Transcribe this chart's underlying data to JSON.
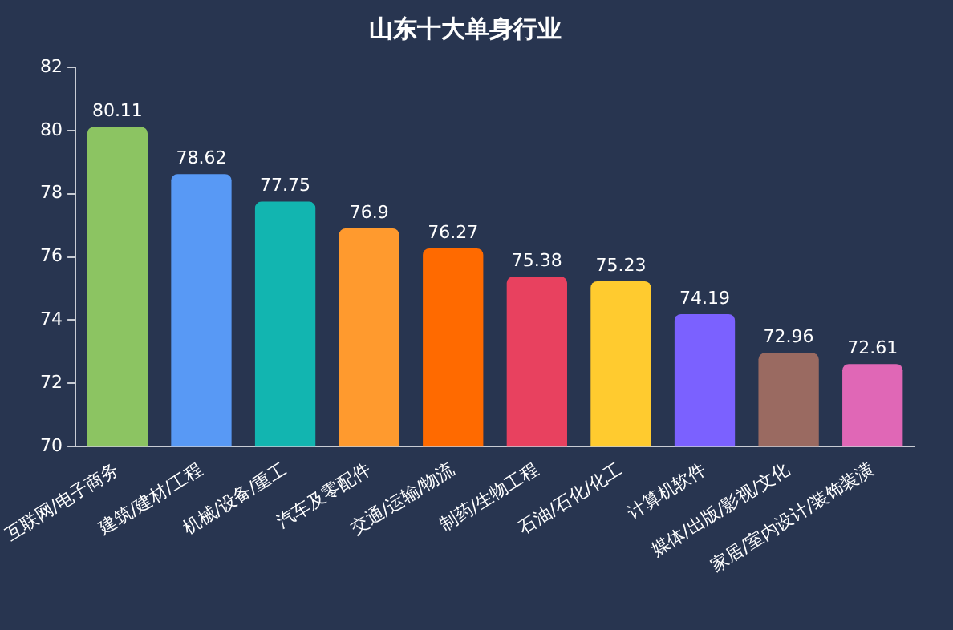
{
  "chart_data": {
    "type": "bar",
    "title": "山东十大单身行业",
    "categories": [
      "互联网/电子商务",
      "建筑/建材/工程",
      "机械/设备/重工",
      "汽车及零配件",
      "交通/运输/物流",
      "制药/生物工程",
      "石油/石化/化工",
      "计算机软件",
      "媒体/出版/影视/文化",
      "家居/室内设计/装饰装潢"
    ],
    "values": [
      80.11,
      78.62,
      77.75,
      76.9,
      76.27,
      75.38,
      75.23,
      74.19,
      72.96,
      72.61
    ],
    "colors": [
      "#8cc462",
      "#5899f5",
      "#12b5b0",
      "#ff9a2e",
      "#ff6a00",
      "#e8415f",
      "#ffcb2f",
      "#7b61ff",
      "#9a6a61",
      "#e067b6"
    ],
    "ylim": [
      70,
      82
    ],
    "yticks": [
      70,
      72,
      74,
      76,
      78,
      80,
      82
    ],
    "grid": false,
    "legend": false,
    "data_labels": true
  }
}
